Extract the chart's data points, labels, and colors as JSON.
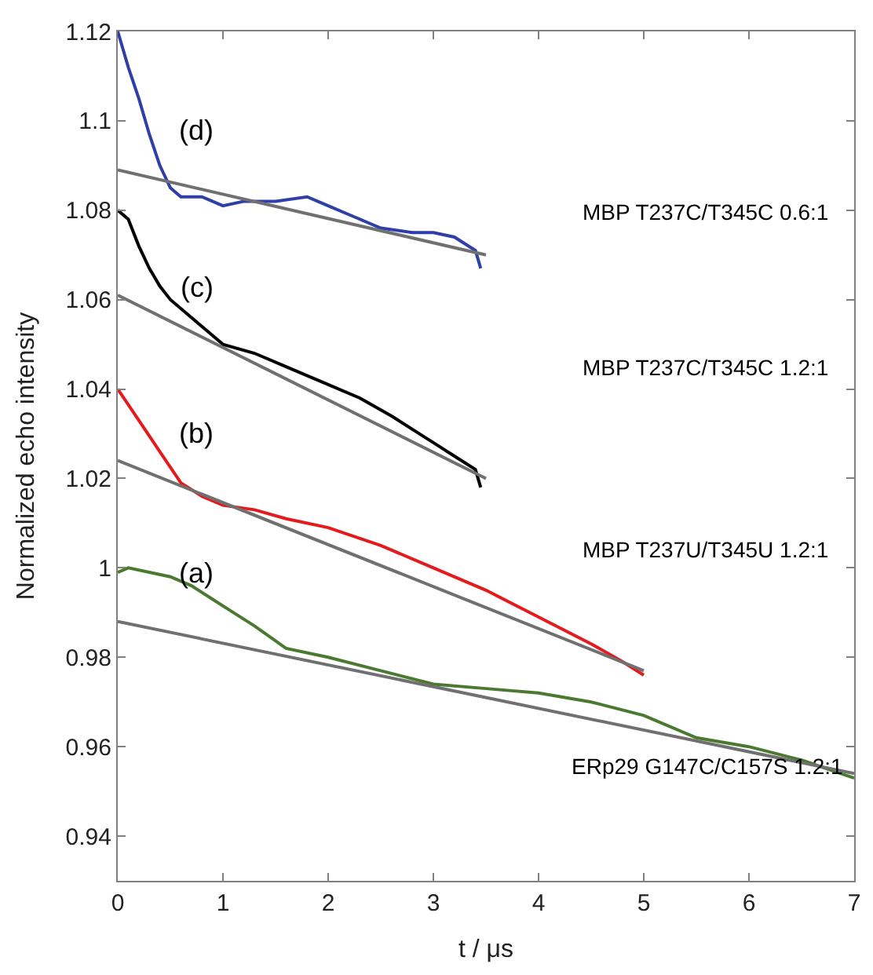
{
  "chart_data": {
    "type": "line",
    "xlabel": "t / μs",
    "ylabel": "Normalized echo intensity",
    "xlim": [
      0,
      7
    ],
    "ylim": [
      0.93,
      1.12
    ],
    "xticks": [
      0,
      1,
      2,
      3,
      4,
      5,
      6,
      7
    ],
    "yticks": [
      0.94,
      0.96,
      0.98,
      1,
      1.02,
      1.04,
      1.06,
      1.08,
      1.1,
      1.12
    ],
    "series": [
      {
        "color": "#2e3fa8",
        "x": [
          0,
          0.1,
          0.2,
          0.3,
          0.4,
          0.5,
          0.6,
          0.8,
          1.0,
          1.2,
          1.5,
          1.8,
          2.0,
          2.2,
          2.5,
          2.8,
          3.0,
          3.2,
          3.4,
          3.45
        ],
        "values": [
          1.12,
          1.112,
          1.105,
          1.097,
          1.09,
          1.085,
          1.083,
          1.083,
          1.081,
          1.082,
          1.082,
          1.083,
          1.081,
          1.079,
          1.076,
          1.075,
          1.075,
          1.074,
          1.071,
          1.067
        ]
      },
      {
        "color": "#707070",
        "x": [
          0,
          3.5
        ],
        "values": [
          1.089,
          1.07
        ]
      },
      {
        "color": "#000000",
        "x": [
          0,
          0.1,
          0.2,
          0.3,
          0.4,
          0.5,
          0.7,
          0.9,
          1.0,
          1.3,
          1.6,
          2.0,
          2.3,
          2.6,
          3.0,
          3.2,
          3.4,
          3.45
        ],
        "values": [
          1.08,
          1.078,
          1.072,
          1.067,
          1.063,
          1.06,
          1.056,
          1.052,
          1.05,
          1.048,
          1.045,
          1.041,
          1.038,
          1.034,
          1.028,
          1.025,
          1.022,
          1.018
        ]
      },
      {
        "color": "#707070",
        "x": [
          0,
          3.5
        ],
        "values": [
          1.061,
          1.02
        ]
      },
      {
        "color": "#e41a1c",
        "x": [
          0,
          0.2,
          0.4,
          0.6,
          0.8,
          1.0,
          1.3,
          1.6,
          2.0,
          2.5,
          3.0,
          3.5,
          4.0,
          4.5,
          4.8,
          5.0
        ],
        "values": [
          1.04,
          1.033,
          1.026,
          1.019,
          1.016,
          1.014,
          1.013,
          1.011,
          1.009,
          1.005,
          1.0,
          0.995,
          0.989,
          0.983,
          0.979,
          0.976
        ]
      },
      {
        "color": "#707070",
        "x": [
          0,
          5
        ],
        "values": [
          1.024,
          0.977
        ]
      },
      {
        "color": "#4a7a30",
        "x": [
          0,
          0.1,
          0.3,
          0.5,
          0.7,
          0.9,
          1.1,
          1.3,
          1.6,
          2.0,
          2.5,
          3.0,
          3.5,
          4.0,
          4.5,
          5.0,
          5.5,
          6.0,
          6.5,
          7.0
        ],
        "values": [
          0.999,
          1.0,
          0.999,
          0.998,
          0.996,
          0.993,
          0.99,
          0.987,
          0.982,
          0.98,
          0.977,
          0.974,
          0.973,
          0.972,
          0.97,
          0.967,
          0.962,
          0.96,
          0.957,
          0.953
        ]
      },
      {
        "color": "#707070",
        "x": [
          0,
          7
        ],
        "values": [
          0.988,
          0.954
        ]
      }
    ],
    "annotations": [
      "(d)",
      "(c)",
      "(b)",
      "(a)",
      "MBP T237C/T345C 0.6:1",
      "MBP T237C/T345C 1.2:1",
      "MBP T237U/T345U 1.2:1",
      "ERp29 G147C/C157S 1.2:1"
    ]
  }
}
